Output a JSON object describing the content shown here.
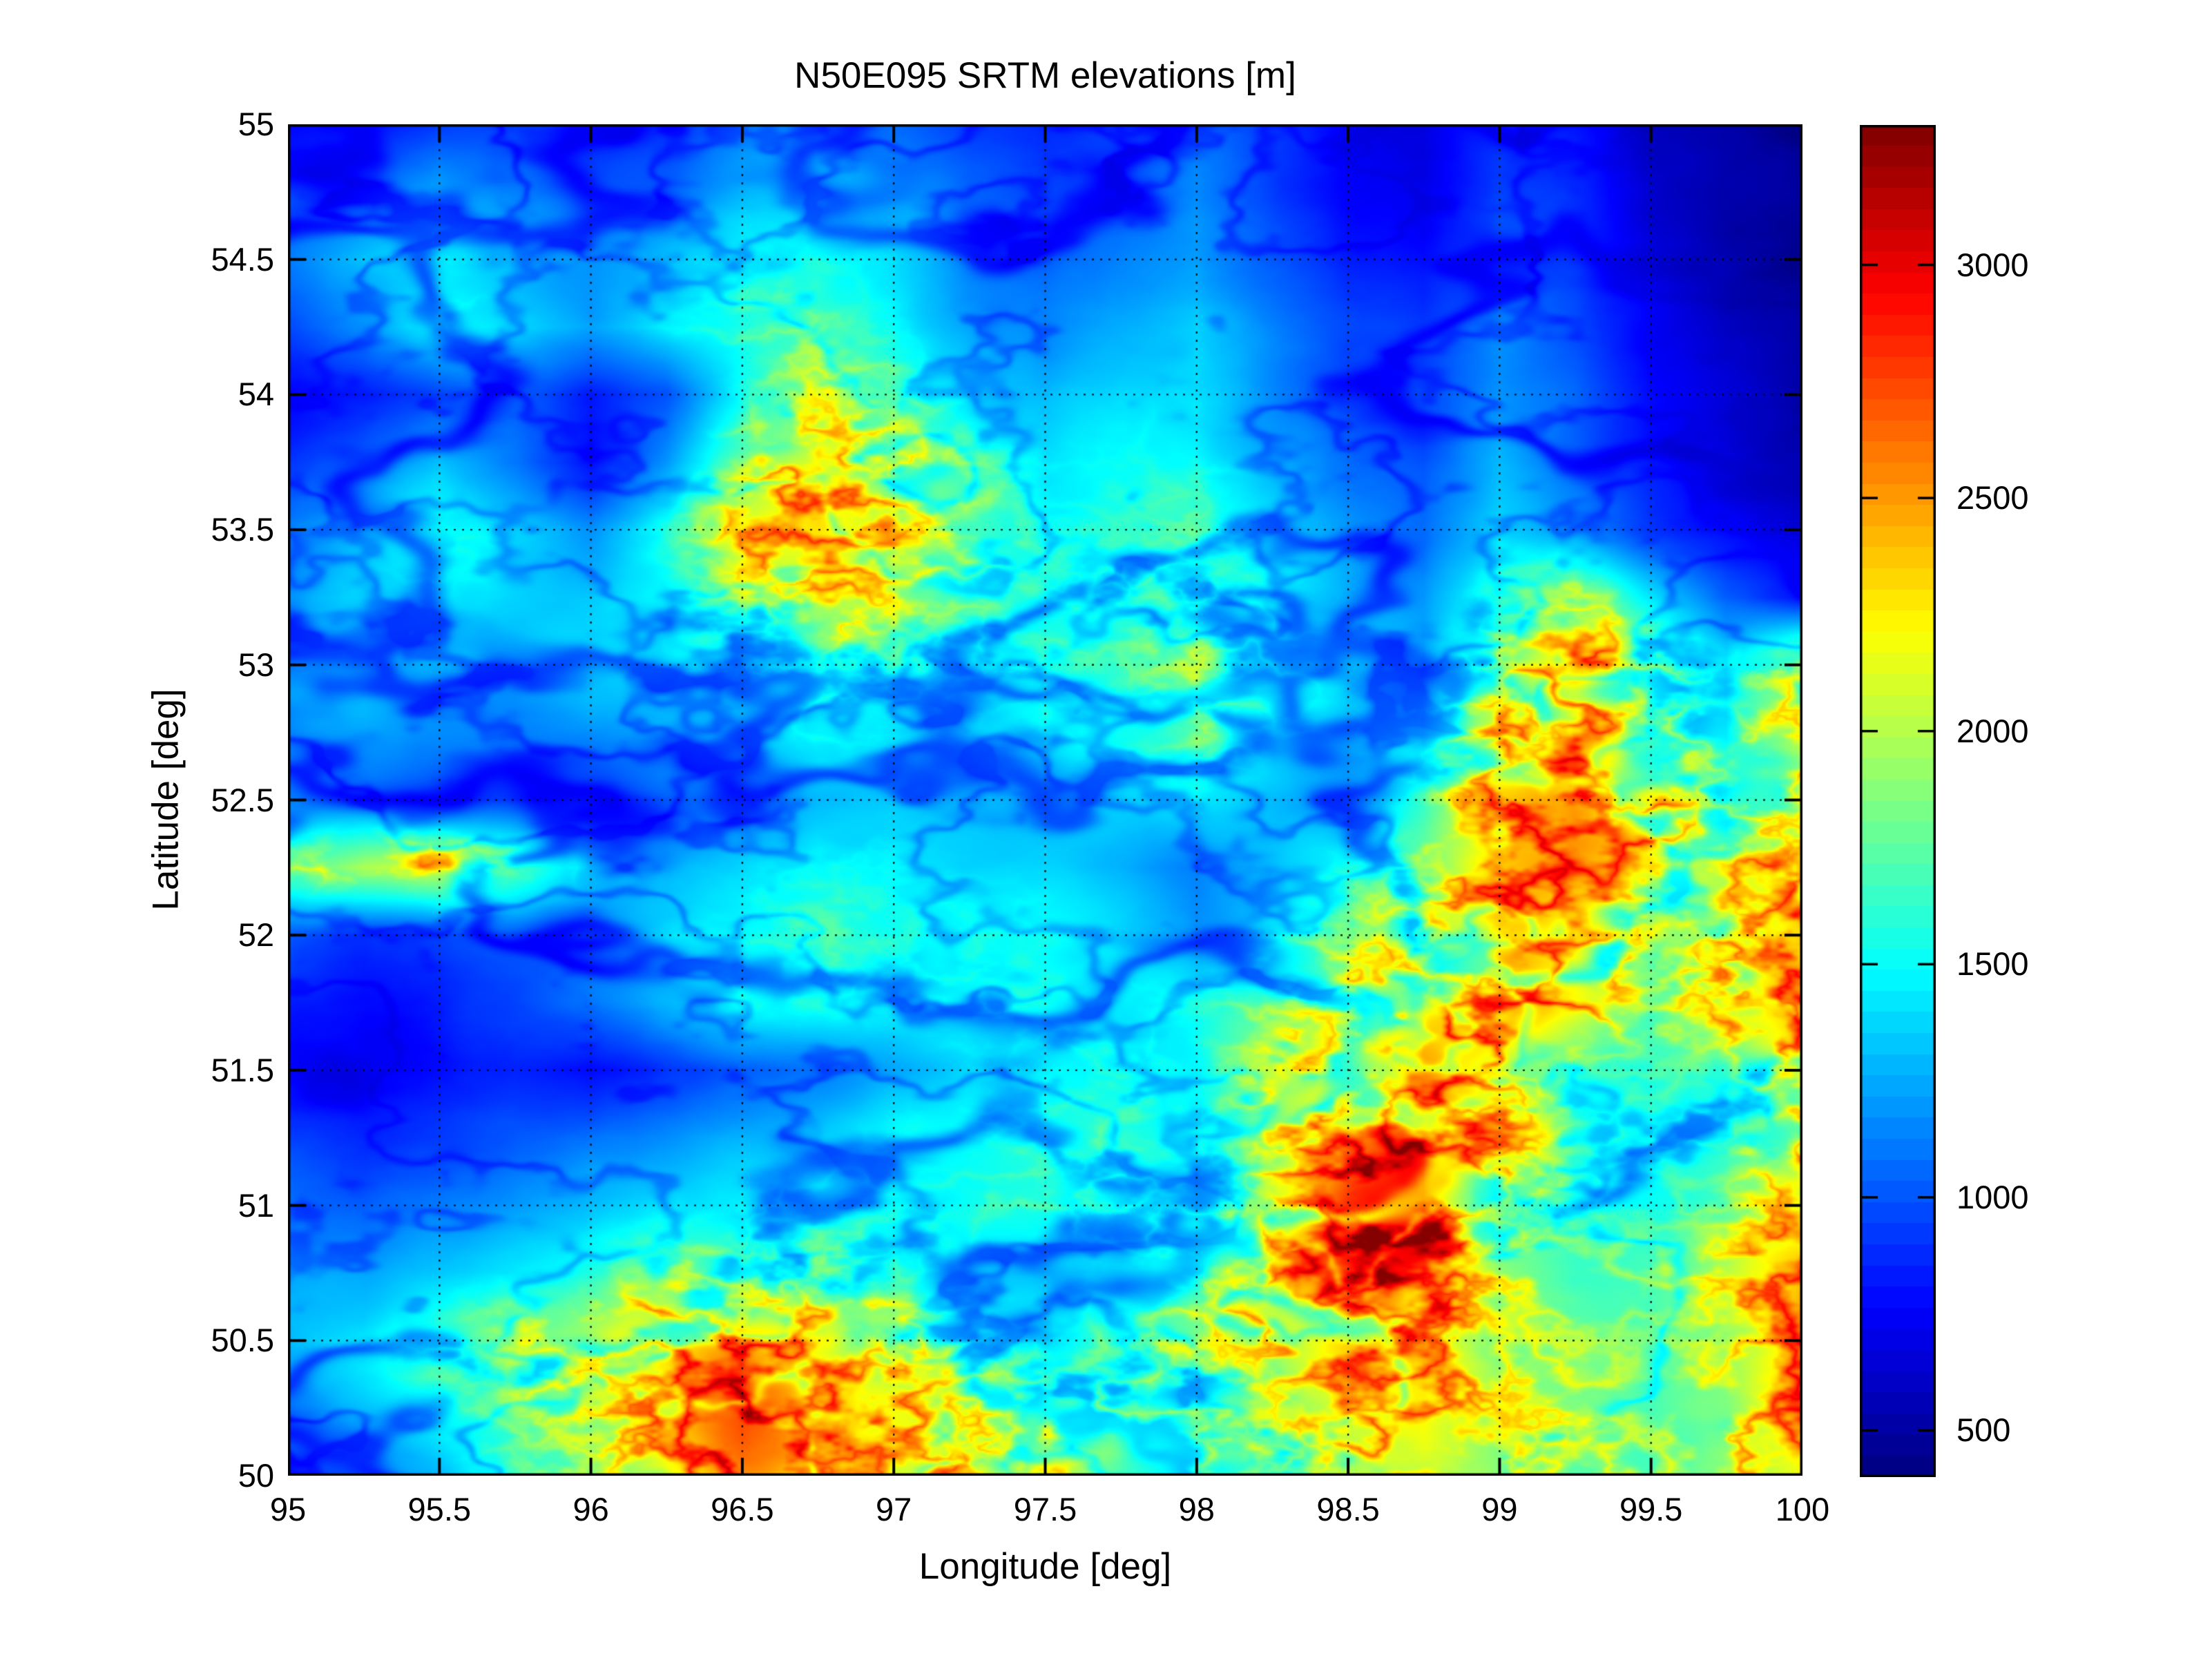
{
  "figure": {
    "title": "N50E095 SRTM elevations [m]",
    "background_color": "#ffffff"
  },
  "axes": {
    "xlabel": "Longitude [deg]",
    "ylabel": "Latitude [deg]",
    "xlim": [
      95,
      100
    ],
    "ylim": [
      50,
      55
    ],
    "xticks": [
      95,
      95.5,
      96,
      96.5,
      97,
      97.5,
      98,
      98.5,
      99,
      99.5,
      100
    ],
    "xtick_labels": [
      "95",
      "95.5",
      "96",
      "96.5",
      "97",
      "97.5",
      "98",
      "98.5",
      "99",
      "99.5",
      "100"
    ],
    "yticks": [
      50,
      50.5,
      51,
      51.5,
      52,
      52.5,
      53,
      53.5,
      54,
      54.5,
      55
    ],
    "ytick_labels": [
      "50",
      "50.5",
      "51",
      "51.5",
      "52",
      "52.5",
      "53",
      "53.5",
      "54",
      "54.5",
      "55"
    ],
    "grid_style": "dotted",
    "grid_color": "#000000",
    "tick_direction": "in"
  },
  "colorbar": {
    "ticks": [
      500,
      1000,
      1500,
      2000,
      2500,
      3000
    ],
    "tick_labels": [
      "500",
      "1000",
      "1500",
      "2000",
      "2500",
      "3000"
    ],
    "vmin": 400,
    "vmax": 3300,
    "colormap": "jet",
    "bands": 64
  },
  "chart_data": {
    "type": "heatmap",
    "title": "N50E095 SRTM elevations [m]",
    "xlabel": "Longitude [deg]",
    "ylabel": "Latitude [deg]",
    "units": "m",
    "colormap": "jet",
    "vmin": 400,
    "vmax": 3300,
    "grid_on": true,
    "legend_position": "right-colorbar",
    "x_lon": [
      95.0,
      95.25,
      95.5,
      95.75,
      96.0,
      96.25,
      96.5,
      96.75,
      97.0,
      97.25,
      97.5,
      97.75,
      98.0,
      98.25,
      98.5,
      98.75,
      99.0,
      99.25,
      99.5,
      99.75,
      100.0
    ],
    "y_lat": [
      55.0,
      54.75,
      54.5,
      54.25,
      54.0,
      53.75,
      53.5,
      53.25,
      53.0,
      52.75,
      52.5,
      52.25,
      52.0,
      51.75,
      51.5,
      51.25,
      51.0,
      50.75,
      50.5,
      50.25,
      50.0
    ],
    "elevation_grid_m": [
      [
        750,
        800,
        950,
        1050,
        900,
        950,
        1150,
        1250,
        1100,
        950,
        900,
        1000,
        1150,
        950,
        750,
        700,
        950,
        850,
        620,
        520,
        470
      ],
      [
        1000,
        1150,
        1300,
        1150,
        1000,
        1050,
        1250,
        1350,
        1200,
        1050,
        950,
        1050,
        1200,
        1000,
        800,
        750,
        1000,
        900,
        650,
        530,
        480
      ],
      [
        1150,
        1350,
        1500,
        1300,
        1150,
        1300,
        1450,
        1500,
        1350,
        1150,
        1050,
        1150,
        1250,
        1050,
        850,
        800,
        1050,
        950,
        700,
        560,
        500
      ],
      [
        1000,
        1200,
        1500,
        1400,
        1250,
        1450,
        1600,
        1650,
        1450,
        1250,
        1150,
        1250,
        1350,
        1150,
        950,
        900,
        1150,
        1000,
        750,
        600,
        520
      ],
      [
        750,
        800,
        950,
        1050,
        850,
        1000,
        1500,
        1900,
        1700,
        1400,
        1250,
        1350,
        1400,
        1200,
        1000,
        950,
        1200,
        1050,
        800,
        650,
        540
      ],
      [
        900,
        1100,
        1300,
        1100,
        800,
        1200,
        1800,
        2200,
        2000,
        1700,
        1400,
        1450,
        1500,
        1300,
        1100,
        1000,
        1300,
        1100,
        850,
        700,
        560
      ],
      [
        1100,
        1300,
        1500,
        1400,
        1200,
        1500,
        2000,
        2300,
        2100,
        1800,
        1500,
        1550,
        1600,
        1400,
        1200,
        1100,
        1400,
        1200,
        900,
        750,
        600
      ],
      [
        1200,
        1400,
        1450,
        1350,
        1300,
        1450,
        1800,
        2100,
        1900,
        1700,
        1600,
        1650,
        1700,
        1500,
        1300,
        1200,
        1600,
        1900,
        1400,
        1000,
        800
      ],
      [
        1250,
        1350,
        1300,
        1250,
        1350,
        1400,
        1500,
        1700,
        1600,
        1500,
        1550,
        1600,
        1800,
        1600,
        1400,
        1300,
        1900,
        2300,
        2000,
        1500,
        2000
      ],
      [
        1200,
        1250,
        1150,
        1100,
        1200,
        1300,
        1400,
        1500,
        1450,
        1400,
        1450,
        1500,
        1700,
        1500,
        1350,
        1500,
        2100,
        2400,
        2100,
        1600,
        2100
      ],
      [
        1150,
        1100,
        1000,
        950,
        1000,
        1100,
        1200,
        1300,
        1350,
        1300,
        1250,
        1300,
        1400,
        1300,
        1200,
        1600,
        2300,
        2600,
        2300,
        1800,
        2200
      ],
      [
        1700,
        2000,
        2100,
        1800,
        1400,
        1300,
        1400,
        1500,
        1450,
        1400,
        1350,
        1250,
        1100,
        1300,
        1500,
        1800,
        2400,
        2500,
        2200,
        1900,
        2300
      ],
      [
        1000,
        900,
        950,
        1050,
        1200,
        1400,
        1500,
        1600,
        1550,
        1500,
        1450,
        1350,
        1200,
        1500,
        1800,
        2000,
        2500,
        2300,
        2000,
        2100,
        2400
      ],
      [
        850,
        800,
        850,
        950,
        1100,
        1300,
        1500,
        1550,
        1500,
        1550,
        1500,
        1450,
        1500,
        1700,
        2000,
        2200,
        2600,
        2200,
        1700,
        2200,
        2500
      ],
      [
        800,
        750,
        800,
        850,
        750,
        900,
        1000,
        1100,
        1250,
        1400,
        1500,
        1550,
        1450,
        1800,
        2100,
        2400,
        1900,
        1560,
        1550,
        1600,
        2200
      ],
      [
        900,
        850,
        900,
        1000,
        1100,
        1200,
        1300,
        1400,
        1450,
        1500,
        1550,
        1600,
        1500,
        1900,
        2400,
        2800,
        2200,
        1600,
        1550,
        1600,
        2000
      ],
      [
        1100,
        1000,
        1100,
        1200,
        1300,
        1400,
        1500,
        1550,
        1500,
        1550,
        1600,
        1650,
        1600,
        2000,
        2800,
        3000,
        1900,
        1600,
        1550,
        1650,
        2100
      ],
      [
        1300,
        1200,
        1300,
        1400,
        1500,
        1700,
        1900,
        1800,
        1600,
        1400,
        1350,
        1400,
        1700,
        2100,
        2700,
        2900,
        1900,
        1700,
        1700,
        1900,
        2300
      ],
      [
        1300,
        1400,
        1600,
        1800,
        2000,
        2300,
        2600,
        2400,
        2000,
        1600,
        1500,
        1700,
        1900,
        2000,
        2400,
        2500,
        1800,
        1700,
        1600,
        1800,
        2400
      ],
      [
        1150,
        1300,
        1500,
        1700,
        1900,
        2400,
        2700,
        2500,
        2200,
        2100,
        2000,
        1900,
        1800,
        1900,
        2100,
        2200,
        1900,
        1800,
        1700,
        1900,
        2500
      ],
      [
        1050,
        1150,
        1300,
        1600,
        1800,
        2200,
        2400,
        2300,
        2200,
        2400,
        2200,
        1900,
        1800,
        1850,
        1950,
        2000,
        1900,
        1850,
        1800,
        2000,
        2300
      ]
    ]
  }
}
